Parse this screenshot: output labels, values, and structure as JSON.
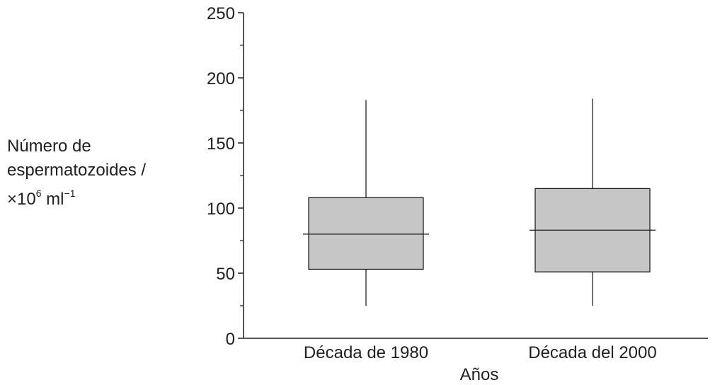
{
  "chart_data": {
    "type": "boxplot",
    "title": "",
    "ylabel": {
      "line1": "Número de",
      "line2": "espermatozoides /",
      "line3_prefix": "×10",
      "line3_exp": "6",
      "line3_mid": " ml",
      "line3_exp2": "−1"
    },
    "xlabel": "Años",
    "ylim": [
      0,
      250
    ],
    "yticks_major": [
      0,
      50,
      100,
      150,
      200,
      250
    ],
    "yticks_minor": [
      25,
      75,
      125,
      175,
      225
    ],
    "categories": [
      "Década de 1980",
      "Década del 2000"
    ],
    "boxes": [
      {
        "category": "Década de 1980",
        "min": 25,
        "q1": 53,
        "median": 80,
        "q3": 108,
        "max": 183
      },
      {
        "category": "Década del 2000",
        "min": 25,
        "q1": 51,
        "median": 83,
        "q3": 115,
        "max": 184
      }
    ],
    "colors": {
      "box_fill": "#c6c6c6",
      "stroke": "#231f20"
    },
    "grid": false
  }
}
